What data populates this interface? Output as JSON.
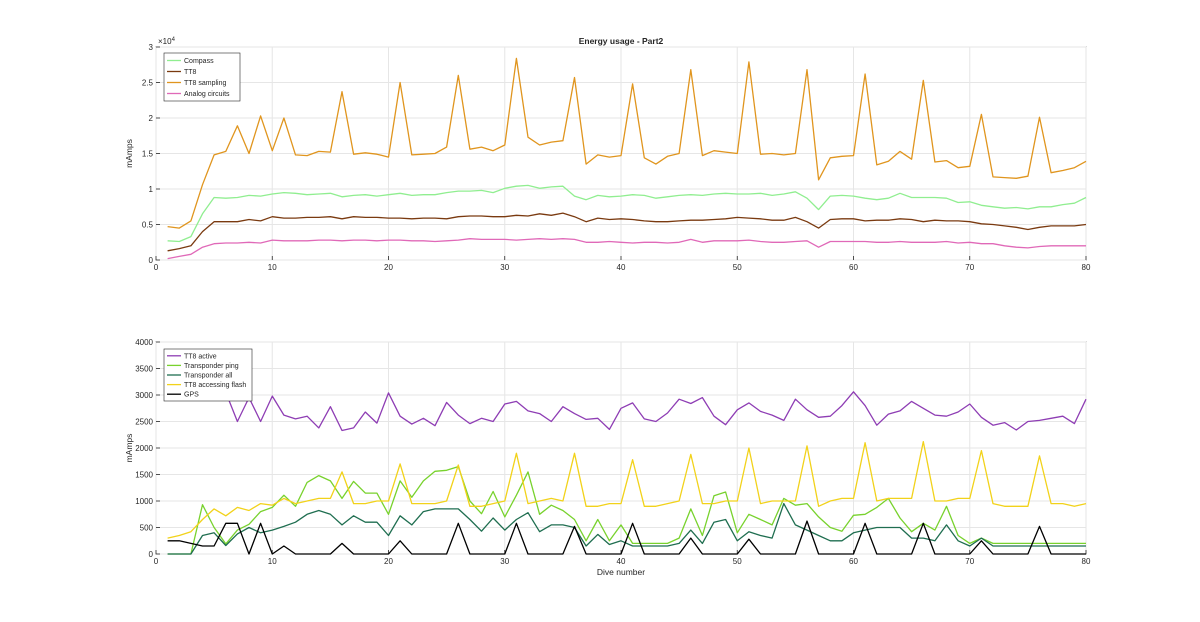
{
  "chart_data": [
    {
      "type": "line",
      "title": "Energy usage - Part2",
      "xlabel": "",
      "ylabel": "mAmps",
      "y_exponent_label": "×10",
      "y_exponent_power": "4",
      "xlim": [
        0,
        80
      ],
      "ylim": [
        0,
        30000
      ],
      "x_ticks": [
        0,
        10,
        20,
        30,
        40,
        50,
        60,
        70,
        80
      ],
      "y_ticks": [
        0,
        5000,
        10000,
        15000,
        20000,
        25000,
        30000
      ],
      "y_tick_labels": [
        "0",
        "0.5",
        "1",
        "1.5",
        "2",
        "2.5",
        "3"
      ],
      "grid": true,
      "legend_position": "top-left",
      "x": [
        1,
        2,
        3,
        4,
        5,
        6,
        7,
        8,
        9,
        10,
        11,
        12,
        13,
        14,
        15,
        16,
        17,
        18,
        19,
        20,
        21,
        22,
        23,
        24,
        25,
        26,
        27,
        28,
        29,
        30,
        31,
        32,
        33,
        34,
        35,
        36,
        37,
        38,
        39,
        40,
        41,
        42,
        43,
        44,
        45,
        46,
        47,
        48,
        49,
        50,
        51,
        52,
        53,
        54,
        55,
        56,
        57,
        58,
        59,
        60,
        61,
        62,
        63,
        64,
        65,
        66,
        67,
        68,
        69,
        70,
        71,
        72,
        73,
        74,
        75,
        76,
        77,
        78,
        79,
        80
      ],
      "series": [
        {
          "name": "Compass",
          "color": "#90ee90",
          "values": [
            2700,
            2600,
            3300,
            6500,
            8800,
            8700,
            8800,
            9100,
            9000,
            9300,
            9500,
            9400,
            9200,
            9300,
            9400,
            8900,
            9100,
            9200,
            9000,
            9200,
            9400,
            9100,
            9200,
            9200,
            9500,
            9700,
            9700,
            9800,
            9500,
            10100,
            10400,
            10500,
            10100,
            10300,
            10400,
            9000,
            8500,
            9100,
            8900,
            9000,
            9200,
            9100,
            8700,
            8900,
            9100,
            9200,
            9100,
            9300,
            9400,
            9300,
            9300,
            9400,
            9100,
            9300,
            9600,
            8700,
            7100,
            9000,
            9100,
            9000,
            8700,
            8500,
            8700,
            9400,
            8800,
            8800,
            8800,
            8700,
            8100,
            8200,
            7700,
            7500,
            7300,
            7400,
            7200,
            7500,
            7500,
            7800,
            8000,
            8800
          ]
        },
        {
          "name": "TT8",
          "color": "#7a3a10",
          "values": [
            1300,
            1600,
            2000,
            4000,
            5400,
            5400,
            5400,
            5700,
            5500,
            6100,
            5900,
            5900,
            6000,
            6000,
            6100,
            5800,
            6100,
            6000,
            6000,
            5900,
            5900,
            5800,
            5900,
            5900,
            5800,
            6100,
            6200,
            6200,
            6100,
            6100,
            6300,
            6200,
            6500,
            6300,
            6600,
            6100,
            5400,
            5900,
            5700,
            5800,
            5700,
            5500,
            5400,
            5400,
            5500,
            5600,
            5600,
            5700,
            5800,
            6000,
            5900,
            5800,
            5600,
            5600,
            6000,
            5400,
            4500,
            5700,
            5800,
            5800,
            5500,
            5600,
            5600,
            5800,
            5700,
            5400,
            5600,
            5500,
            5500,
            5400,
            5100,
            5000,
            4800,
            4600,
            4300,
            4600,
            4800,
            4800,
            4800,
            5000
          ]
        },
        {
          "name": "TT8 sampling",
          "color": "#e0951e",
          "values": [
            4700,
            4500,
            5500,
            10600,
            14800,
            15300,
            18900,
            15000,
            20300,
            15400,
            20000,
            14800,
            14700,
            15300,
            15200,
            23700,
            14900,
            15100,
            14900,
            14500,
            25000,
            14800,
            14900,
            15000,
            15900,
            26000,
            15600,
            15900,
            15400,
            16200,
            28400,
            17300,
            16200,
            16600,
            16800,
            25700,
            13500,
            14800,
            14500,
            14700,
            24800,
            14400,
            13500,
            14600,
            15000,
            26800,
            14700,
            15400,
            15200,
            15000,
            27900,
            14900,
            15000,
            14800,
            15000,
            26800,
            11300,
            14400,
            14600,
            14700,
            26200,
            13400,
            13900,
            15300,
            14200,
            25300,
            13800,
            14000,
            13000,
            13200,
            20500,
            11700,
            11600,
            11500,
            11800,
            20100,
            12300,
            12600,
            13000,
            13900
          ]
        },
        {
          "name": "Analog circuits",
          "color": "#e069b8",
          "values": [
            200,
            500,
            800,
            1800,
            2300,
            2400,
            2400,
            2500,
            2400,
            2800,
            2700,
            2700,
            2700,
            2800,
            2800,
            2700,
            2800,
            2800,
            2700,
            2800,
            2800,
            2700,
            2700,
            2600,
            2700,
            2800,
            3000,
            2900,
            2900,
            2900,
            2800,
            2900,
            3000,
            2900,
            3000,
            2900,
            2500,
            2500,
            2600,
            2500,
            2400,
            2500,
            2500,
            2400,
            2500,
            2900,
            2500,
            2700,
            2700,
            2700,
            2800,
            2600,
            2500,
            2500,
            2600,
            2700,
            1800,
            2600,
            2600,
            2600,
            2600,
            2500,
            2500,
            2600,
            2500,
            2500,
            2500,
            2600,
            2400,
            2500,
            2300,
            2300,
            2000,
            1800,
            1700,
            1900,
            2000,
            2000,
            2000,
            2000
          ]
        }
      ]
    },
    {
      "type": "line",
      "title": "",
      "xlabel": "Dive number",
      "ylabel": "mAmps",
      "xlim": [
        0,
        80
      ],
      "ylim": [
        0,
        4000
      ],
      "x_ticks": [
        0,
        10,
        20,
        30,
        40,
        50,
        60,
        70,
        80
      ],
      "y_ticks": [
        0,
        500,
        1000,
        1500,
        2000,
        2500,
        3000,
        3500,
        4000
      ],
      "y_tick_labels": [
        "0",
        "500",
        "1000",
        "1500",
        "2000",
        "2500",
        "3000",
        "3500",
        "4000"
      ],
      "grid": true,
      "legend_position": "top-left",
      "x": [
        1,
        2,
        3,
        4,
        5,
        6,
        7,
        8,
        9,
        10,
        11,
        12,
        13,
        14,
        15,
        16,
        17,
        18,
        19,
        20,
        21,
        22,
        23,
        24,
        25,
        26,
        27,
        28,
        29,
        30,
        31,
        32,
        33,
        34,
        35,
        36,
        37,
        38,
        39,
        40,
        41,
        42,
        43,
        44,
        45,
        46,
        47,
        48,
        49,
        50,
        51,
        52,
        53,
        54,
        55,
        56,
        57,
        58,
        59,
        60,
        61,
        62,
        63,
        64,
        65,
        66,
        67,
        68,
        69,
        70,
        71,
        72,
        73,
        74,
        75,
        76,
        77,
        78,
        79,
        80
      ],
      "series": [
        {
          "name": "TT8 active",
          "color": "#8e3db4",
          "values": [
            null,
            null,
            null,
            null,
            null,
            3050,
            2500,
            2950,
            2500,
            2980,
            2620,
            2550,
            2600,
            2380,
            2780,
            2330,
            2380,
            2680,
            2470,
            3040,
            2600,
            2450,
            2560,
            2420,
            2860,
            2620,
            2460,
            2560,
            2500,
            2830,
            2880,
            2700,
            2650,
            2500,
            2780,
            2650,
            2540,
            2560,
            2350,
            2750,
            2850,
            2550,
            2500,
            2660,
            2920,
            2840,
            2950,
            2600,
            2440,
            2720,
            2850,
            2690,
            2620,
            2520,
            2920,
            2720,
            2580,
            2600,
            2800,
            3060,
            2800,
            2430,
            2640,
            2700,
            2880,
            2750,
            2620,
            2600,
            2680,
            2830,
            2580,
            2430,
            2480,
            2340,
            2500,
            2520,
            2560,
            2600,
            2460,
            2920
          ]
        },
        {
          "name": "Transponder ping",
          "color": "#78d22d",
          "values": [
            0,
            0,
            0,
            930,
            500,
            190,
            450,
            560,
            800,
            880,
            1110,
            900,
            1350,
            1480,
            1380,
            1050,
            1370,
            1150,
            1150,
            750,
            1380,
            1070,
            1380,
            1560,
            1580,
            1650,
            1000,
            760,
            1180,
            700,
            1110,
            1550,
            750,
            920,
            820,
            650,
            250,
            650,
            250,
            550,
            200,
            200,
            200,
            200,
            300,
            850,
            350,
            1100,
            1170,
            400,
            750,
            650,
            550,
            1050,
            920,
            950,
            700,
            500,
            430,
            730,
            750,
            880,
            1050,
            680,
            420,
            580,
            450,
            900,
            350,
            200,
            300,
            200,
            200,
            200,
            200,
            200,
            200,
            200,
            200,
            200
          ]
        },
        {
          "name": "Transponder all",
          "color": "#1f6e50",
          "values": [
            0,
            0,
            0,
            350,
            400,
            160,
            380,
            500,
            400,
            450,
            520,
            600,
            750,
            820,
            750,
            550,
            720,
            600,
            600,
            350,
            720,
            550,
            800,
            850,
            850,
            850,
            650,
            430,
            680,
            450,
            650,
            780,
            420,
            550,
            550,
            500,
            150,
            370,
            180,
            250,
            150,
            150,
            150,
            150,
            200,
            450,
            200,
            600,
            650,
            250,
            420,
            350,
            300,
            950,
            550,
            450,
            350,
            250,
            250,
            400,
            450,
            500,
            500,
            500,
            300,
            300,
            250,
            550,
            250,
            150,
            300,
            150,
            150,
            150,
            150,
            150,
            150,
            150,
            150,
            150
          ]
        },
        {
          "name": "TT8 accessing flash",
          "color": "#f2d21a",
          "values": [
            300,
            350,
            420,
            650,
            850,
            720,
            880,
            820,
            950,
            920,
            1050,
            950,
            1000,
            1050,
            1050,
            1550,
            950,
            950,
            1000,
            1000,
            1700,
            950,
            950,
            950,
            1000,
            1680,
            900,
            900,
            950,
            1000,
            1900,
            950,
            1000,
            1050,
            1000,
            1900,
            900,
            900,
            950,
            950,
            1780,
            900,
            900,
            950,
            1000,
            1880,
            950,
            950,
            1000,
            1000,
            2000,
            950,
            1000,
            1000,
            1000,
            2040,
            900,
            1000,
            1050,
            1050,
            2100,
            1000,
            1050,
            1050,
            1050,
            2120,
            1000,
            1000,
            1050,
            1050,
            1950,
            950,
            900,
            900,
            900,
            1850,
            950,
            950,
            900,
            950
          ]
        },
        {
          "name": "GPS",
          "color": "#000000",
          "values": [
            250,
            250,
            200,
            150,
            150,
            580,
            580,
            0,
            580,
            0,
            150,
            0,
            0,
            0,
            0,
            200,
            0,
            0,
            0,
            0,
            250,
            0,
            0,
            0,
            0,
            580,
            0,
            0,
            0,
            0,
            580,
            0,
            0,
            0,
            0,
            520,
            0,
            0,
            0,
            0,
            580,
            0,
            0,
            0,
            0,
            300,
            0,
            0,
            0,
            0,
            280,
            0,
            0,
            0,
            0,
            620,
            0,
            0,
            0,
            0,
            580,
            0,
            0,
            0,
            0,
            580,
            0,
            0,
            0,
            0,
            250,
            0,
            0,
            0,
            0,
            520,
            0,
            0,
            0,
            0
          ]
        }
      ]
    }
  ]
}
